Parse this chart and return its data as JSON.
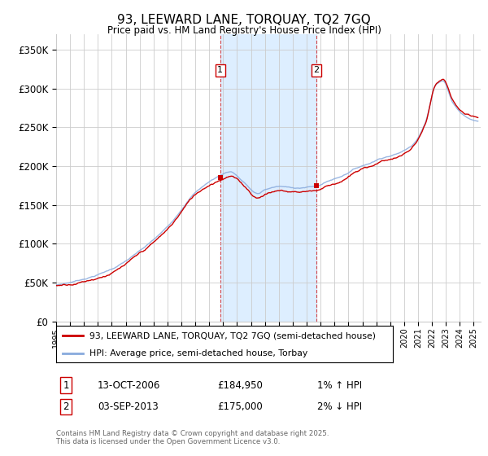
{
  "title": "93, LEEWARD LANE, TORQUAY, TQ2 7GQ",
  "subtitle": "Price paid vs. HM Land Registry's House Price Index (HPI)",
  "ylabel_ticks": [
    "£0",
    "£50K",
    "£100K",
    "£150K",
    "£200K",
    "£250K",
    "£300K",
    "£350K"
  ],
  "ytick_values": [
    0,
    50000,
    100000,
    150000,
    200000,
    250000,
    300000,
    350000
  ],
  "ylim": [
    0,
    370000
  ],
  "xlim_start": 1995.0,
  "xlim_end": 2025.5,
  "transaction1": {
    "date_num": 2006.79,
    "price": 184950,
    "label": "1",
    "date_str": "13-OCT-2006",
    "price_str": "£184,950",
    "hpi_str": "1% ↑ HPI"
  },
  "transaction2": {
    "date_num": 2013.67,
    "price": 175000,
    "label": "2",
    "date_str": "03-SEP-2013",
    "price_str": "£175,000",
    "hpi_str": "2% ↓ HPI"
  },
  "legend_property": "93, LEEWARD LANE, TORQUAY, TQ2 7GQ (semi-detached house)",
  "legend_hpi": "HPI: Average price, semi-detached house, Torbay",
  "footer": "Contains HM Land Registry data © Crown copyright and database right 2025.\nThis data is licensed under the Open Government Licence v3.0.",
  "property_color": "#cc0000",
  "hpi_color": "#88aadd",
  "shade_color": "#ddeeff",
  "bg_color": "#ffffff",
  "grid_color": "#cccccc",
  "xticks": [
    1995,
    1996,
    1997,
    1998,
    1999,
    2000,
    2001,
    2002,
    2003,
    2004,
    2005,
    2006,
    2007,
    2008,
    2009,
    2010,
    2011,
    2012,
    2013,
    2014,
    2015,
    2016,
    2017,
    2018,
    2019,
    2020,
    2021,
    2022,
    2023,
    2024,
    2025
  ]
}
